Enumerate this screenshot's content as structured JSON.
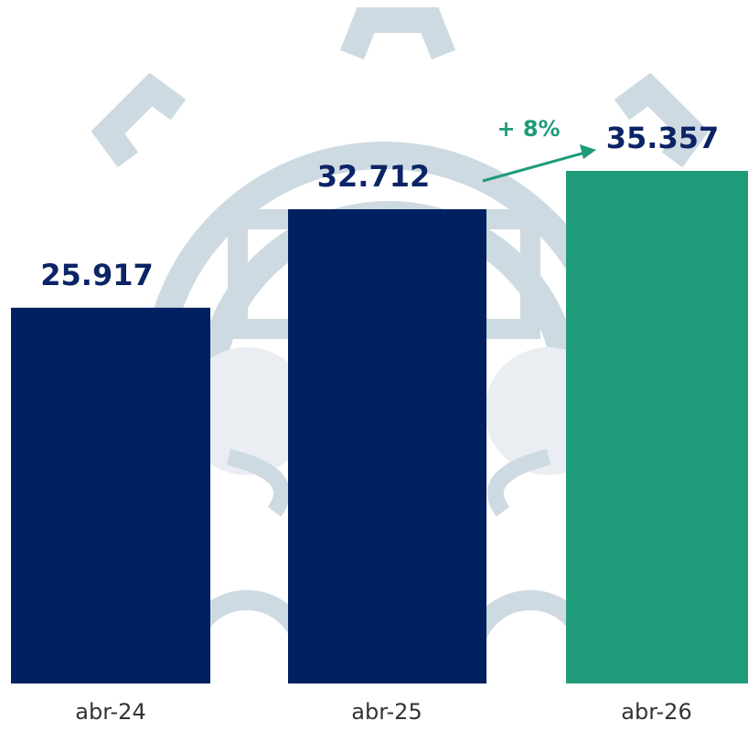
{
  "chart_data": {
    "type": "bar",
    "categories": [
      "abr-24",
      "abr-25",
      "abr-26"
    ],
    "values": [
      25917,
      32712,
      35357
    ],
    "value_labels": [
      "25.917",
      "32.712",
      "35.357"
    ],
    "colors": [
      "#002060",
      "#002060",
      "#1f9b7a"
    ],
    "annotation": "+ 8%"
  }
}
